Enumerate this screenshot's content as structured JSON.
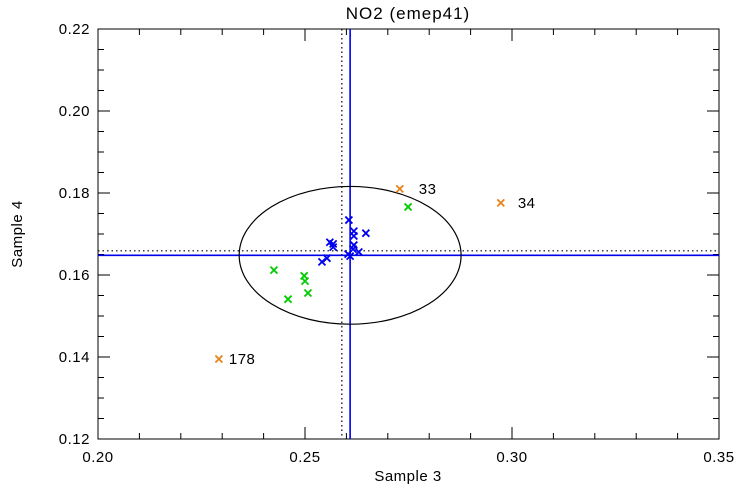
{
  "window": {
    "background": "#FFFFFF"
  },
  "colors": {
    "axis": "#000000",
    "series_blue": "#0000EE",
    "series_green": "#00CC00",
    "series_orange": "#E8821C"
  },
  "chart_data": {
    "type": "scatter",
    "title": "NO2 (emep41)",
    "xlabel": "Sample 3",
    "ylabel": "Sample 4",
    "xlim": [
      0.2,
      0.35
    ],
    "ylim": [
      0.12,
      0.22
    ],
    "grid": false,
    "legend": null,
    "x_ticks": {
      "major": [
        0.2,
        0.25,
        0.3,
        0.35
      ],
      "labels": [
        "0.20",
        "0.25",
        "0.30",
        "0.35"
      ],
      "minor_step": 0.01
    },
    "y_ticks": {
      "major": [
        0.12,
        0.14,
        0.16,
        0.18,
        0.2,
        0.22
      ],
      "labels": [
        "0.12",
        "0.14",
        "0.16",
        "0.18",
        "0.20",
        "0.22"
      ],
      "minor_step": 0.005
    },
    "series": [
      {
        "name": "cluster-blue",
        "color": "#0000EE",
        "marker": "x",
        "points": [
          [
            0.2606,
            0.1734
          ],
          [
            0.2618,
            0.1707
          ],
          [
            0.2618,
            0.1695
          ],
          [
            0.2647,
            0.1702
          ],
          [
            0.256,
            0.168
          ],
          [
            0.2568,
            0.1676
          ],
          [
            0.2568,
            0.1668
          ],
          [
            0.2618,
            0.1673
          ],
          [
            0.2616,
            0.1663
          ],
          [
            0.263,
            0.1656
          ],
          [
            0.2604,
            0.1651
          ],
          [
            0.2609,
            0.1646
          ],
          [
            0.2553,
            0.1641
          ],
          [
            0.2541,
            0.1632
          ]
        ]
      },
      {
        "name": "cluster-green",
        "color": "#00CC00",
        "marker": "x",
        "points": [
          [
            0.2425,
            0.1612
          ],
          [
            0.2498,
            0.1598
          ],
          [
            0.25,
            0.1585
          ],
          [
            0.2507,
            0.1556
          ],
          [
            0.2459,
            0.1541
          ],
          [
            0.2749,
            0.1766
          ]
        ]
      },
      {
        "name": "outliers-orange",
        "color": "#E8821C",
        "marker": "x",
        "points": [
          [
            0.2729,
            0.181
          ],
          [
            0.2973,
            0.1776
          ],
          [
            0.2292,
            0.1395
          ]
        ],
        "labels": [
          "33",
          "34",
          "178"
        ],
        "label_dx": [
          19,
          17,
          10
        ]
      }
    ],
    "reference_lines": [
      {
        "orientation": "vertical",
        "value": 0.2609,
        "style": "solid",
        "color": "#0000EE"
      },
      {
        "orientation": "vertical",
        "value": 0.2589,
        "style": "dotted",
        "color": "#000000"
      },
      {
        "orientation": "horizontal",
        "value": 0.1648,
        "style": "solid",
        "color": "#0000EE"
      },
      {
        "orientation": "horizontal",
        "value": 0.1659,
        "style": "dotted",
        "color": "#000000"
      }
    ],
    "ellipse": {
      "cx": 0.2609,
      "cy": 0.1648,
      "rx": 0.0268,
      "ry": 0.0168,
      "color": "#000000"
    }
  }
}
